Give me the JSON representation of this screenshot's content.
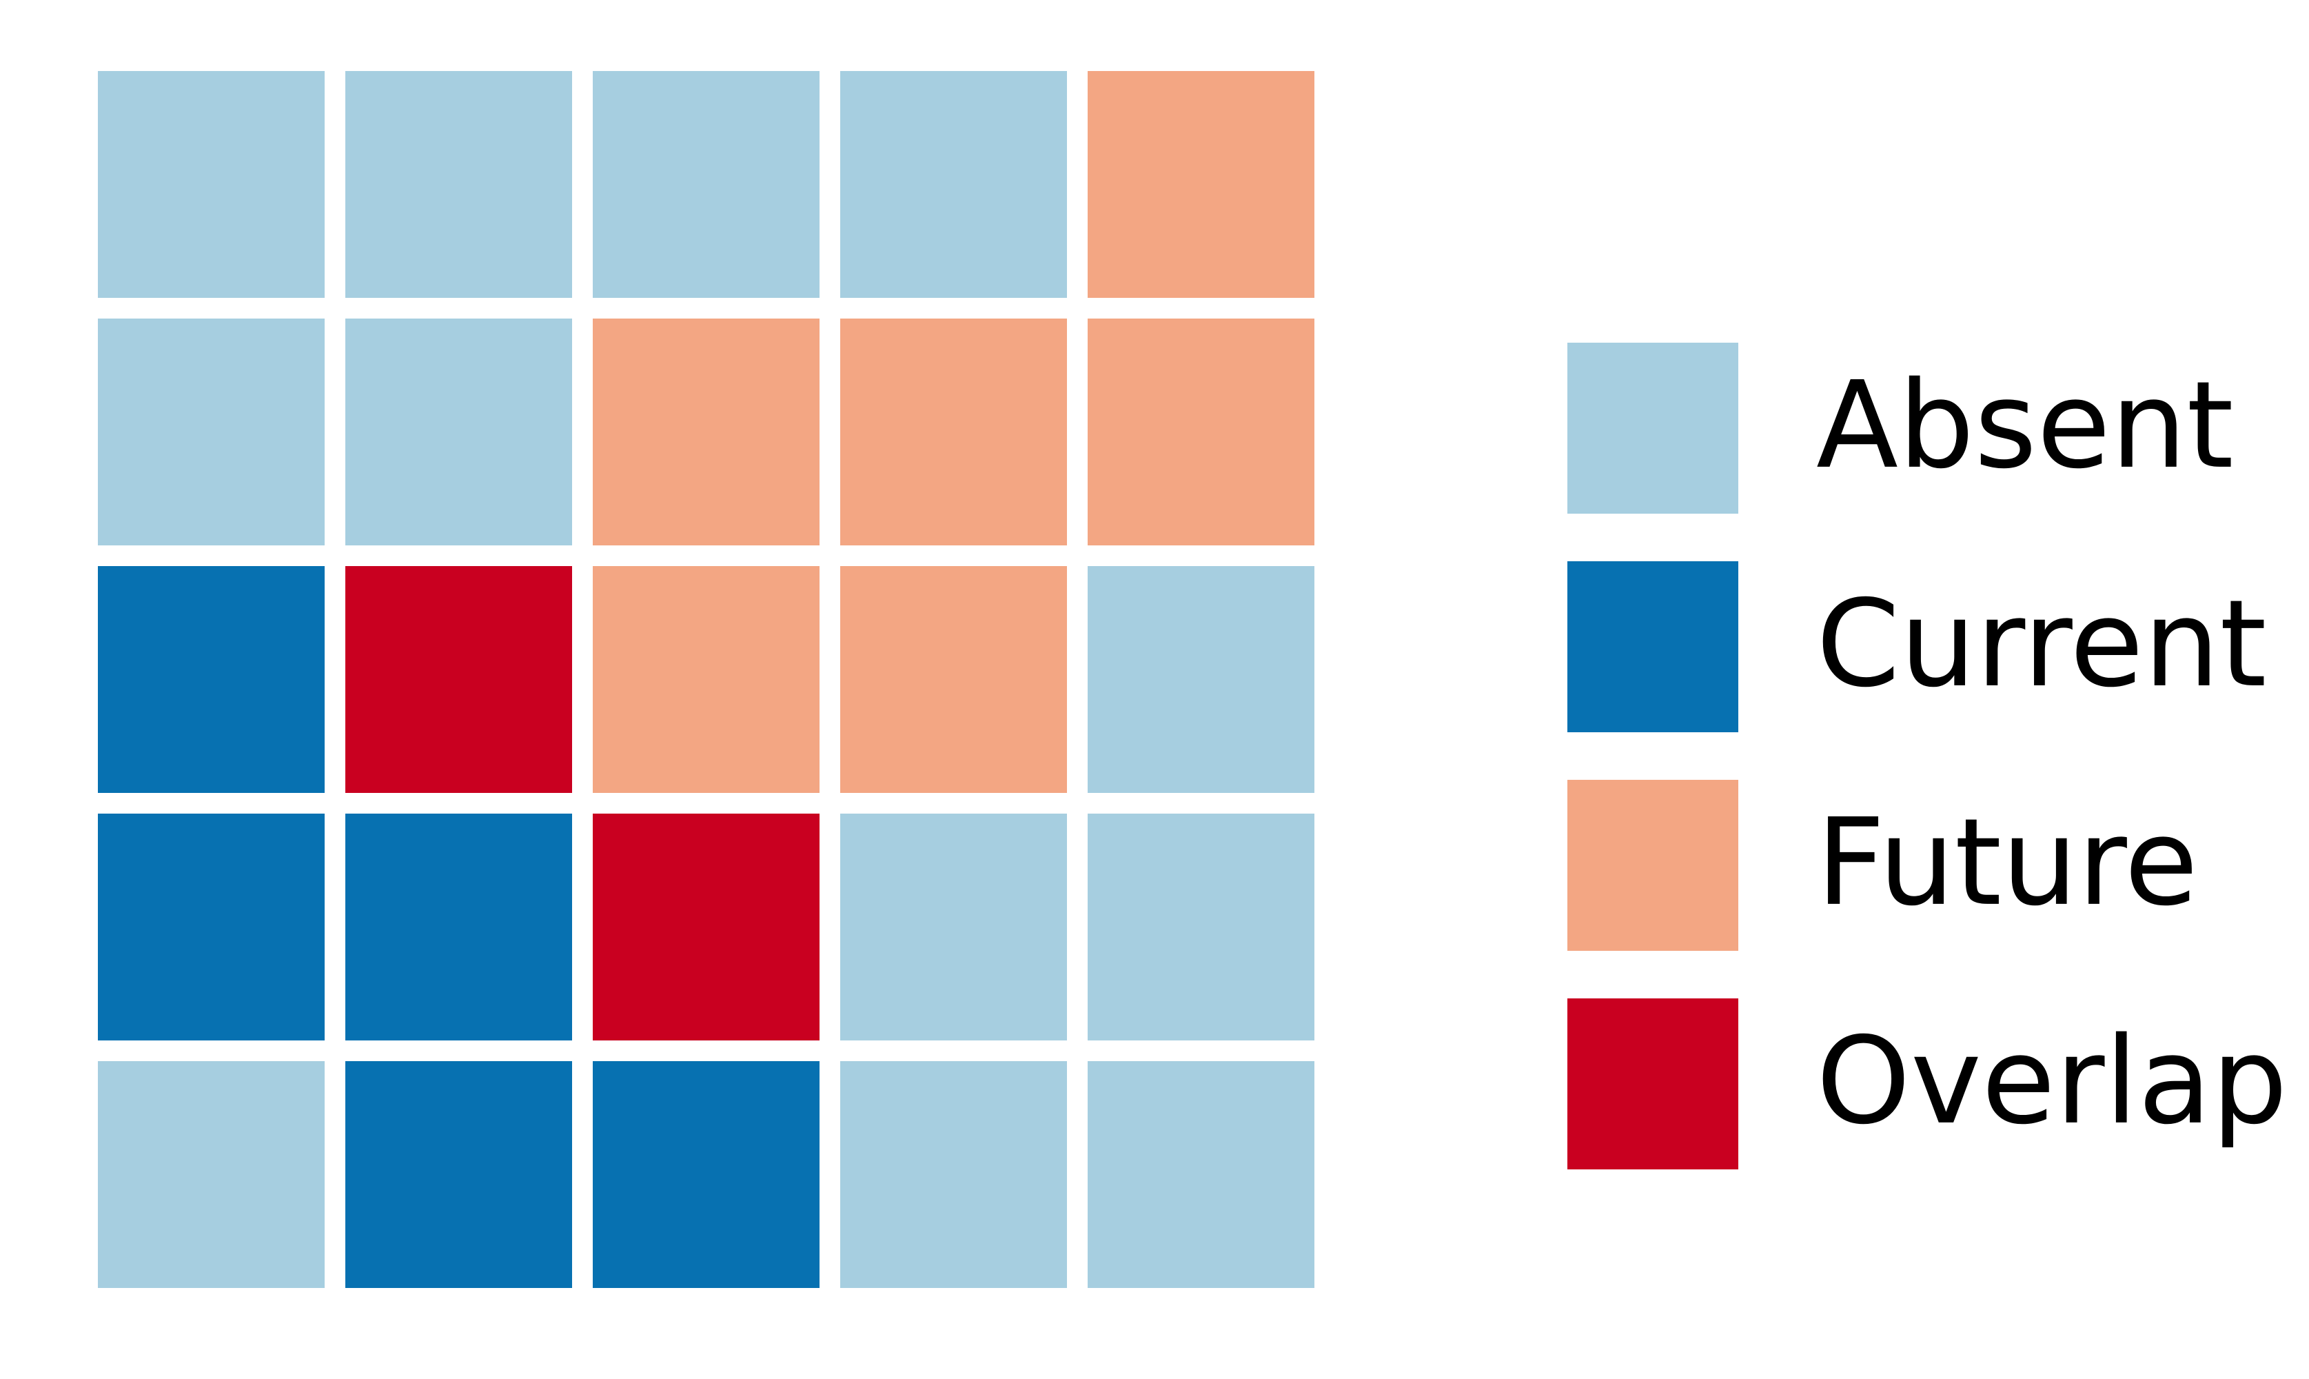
{
  "chart_data": {
    "type": "heatmap",
    "title": "",
    "xlabel": "",
    "ylabel": "",
    "grid": false,
    "legend_placement": "right",
    "categories": [
      "Absent",
      "Current",
      "Future",
      "Overlap"
    ],
    "colors": {
      "Absent": "#a6cee0",
      "Current": "#0771b1",
      "Future": "#f3a683",
      "Overlap": "#c90020"
    },
    "rows": [
      [
        "Absent",
        "Absent",
        "Absent",
        "Absent",
        "Future"
      ],
      [
        "Absent",
        "Absent",
        "Future",
        "Future",
        "Future"
      ],
      [
        "Current",
        "Overlap",
        "Future",
        "Future",
        "Absent"
      ],
      [
        "Current",
        "Current",
        "Overlap",
        "Absent",
        "Absent"
      ],
      [
        "Absent",
        "Current",
        "Current",
        "Absent",
        "Absent"
      ]
    ],
    "legend": [
      {
        "label": "Absent",
        "color": "#a6cee0",
        "icon": "absent-swatch"
      },
      {
        "label": "Current",
        "color": "#0771b1",
        "icon": "current-swatch"
      },
      {
        "label": "Future",
        "color": "#f3a683",
        "icon": "future-swatch"
      },
      {
        "label": "Overlap",
        "color": "#c90020",
        "icon": "overlap-swatch"
      }
    ]
  }
}
